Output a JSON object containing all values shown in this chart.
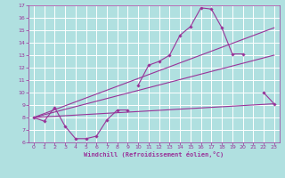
{
  "xlabel": "Windchill (Refroidissement éolien,°C)",
  "background_color": "#b0e0e0",
  "grid_color": "#c8e8e8",
  "line_color": "#993399",
  "xlim": [
    -0.5,
    23.5
  ],
  "ylim": [
    6,
    17
  ],
  "xticks": [
    0,
    1,
    2,
    3,
    4,
    5,
    6,
    7,
    8,
    9,
    10,
    11,
    12,
    13,
    14,
    15,
    16,
    17,
    18,
    19,
    20,
    21,
    22,
    23
  ],
  "yticks": [
    6,
    7,
    8,
    9,
    10,
    11,
    12,
    13,
    14,
    15,
    16,
    17
  ],
  "main_series": {
    "x": [
      0,
      1,
      2,
      3,
      4,
      5,
      6,
      7,
      8,
      9,
      10,
      11,
      12,
      13,
      14,
      15,
      16,
      17,
      18,
      19,
      20,
      22,
      23
    ],
    "y": [
      8.0,
      7.7,
      8.8,
      7.3,
      6.3,
      6.3,
      6.5,
      7.8,
      8.6,
      8.6,
      10.6,
      12.2,
      12.5,
      13.0,
      14.6,
      15.3,
      16.8,
      16.7,
      15.2,
      13.1,
      13.1,
      10.0,
      9.1
    ]
  },
  "segments": [
    {
      "x": [
        0,
        1,
        2,
        3,
        4,
        5,
        6,
        7,
        8,
        9
      ],
      "y": [
        8.0,
        7.7,
        8.8,
        7.3,
        6.3,
        6.3,
        6.5,
        7.8,
        8.6,
        8.6
      ]
    },
    {
      "x": [
        10,
        11,
        12,
        13,
        14,
        15,
        16,
        17,
        18,
        19,
        20
      ],
      "y": [
        10.6,
        12.2,
        12.5,
        13.0,
        14.6,
        15.3,
        16.8,
        16.7,
        15.2,
        13.1,
        13.1
      ]
    },
    {
      "x": [
        22,
        23
      ],
      "y": [
        10.0,
        9.1
      ]
    }
  ],
  "trend_lines": [
    {
      "x": [
        0,
        23
      ],
      "y": [
        8.0,
        9.1
      ]
    },
    {
      "x": [
        0,
        23
      ],
      "y": [
        8.0,
        15.2
      ]
    },
    {
      "x": [
        0,
        23
      ],
      "y": [
        8.0,
        13.0
      ]
    }
  ]
}
